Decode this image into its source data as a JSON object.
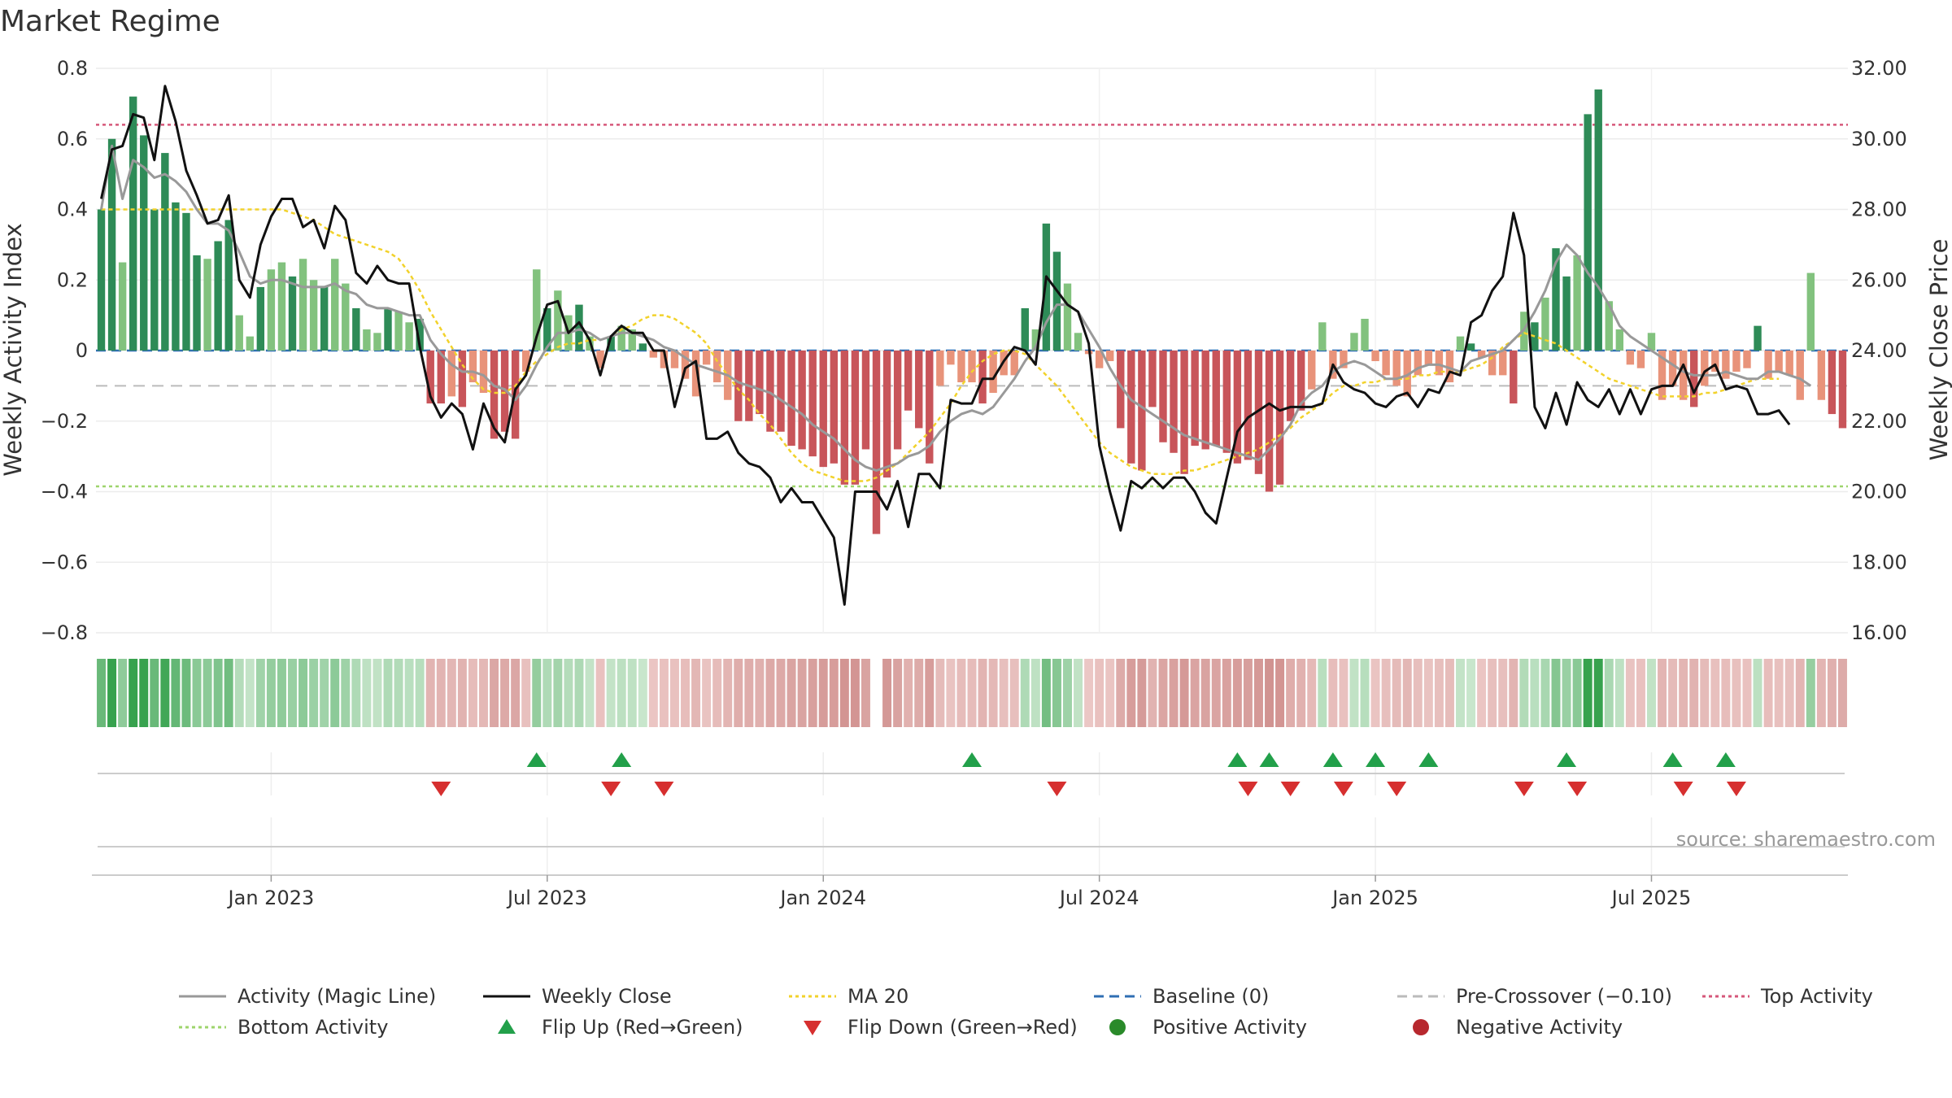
{
  "chart_data": {
    "type": "bar",
    "title": "Market Regime",
    "left_axis": {
      "label": "Weekly Activity Index",
      "ylim": [
        -0.8,
        0.8
      ],
      "ticks": [
        0.8,
        0.6,
        0.4,
        0.2,
        0,
        -0.2,
        -0.4,
        -0.6,
        -0.8
      ],
      "tick_labels": [
        "0.8",
        "0.6",
        "0.4",
        "0.2",
        "0",
        "−0.2",
        "−0.4",
        "−0.6",
        "−0.8"
      ]
    },
    "right_axis": {
      "label": "Weekly Close Price",
      "ylim": [
        16,
        32
      ],
      "ticks": [
        32,
        30,
        28,
        26,
        24,
        22,
        20,
        18,
        16
      ],
      "tick_labels": [
        "32.00",
        "30.00",
        "28.00",
        "26.00",
        "24.00",
        "22.00",
        "20.00",
        "18.00",
        "16.00"
      ]
    },
    "x_axis": {
      "ticks": [
        "Jan 2023",
        "Jul 2023",
        "Jan 2024",
        "Jul 2024",
        "Jan 2025",
        "Jul 2025"
      ]
    },
    "reference_lines": {
      "baseline": 0,
      "pre_crossover": -0.1,
      "top_activity": 0.64,
      "bottom_activity": -0.385
    },
    "activity": [
      0.4,
      0.6,
      0.25,
      0.72,
      0.61,
      0.4,
      0.56,
      0.42,
      0.39,
      0.27,
      0.26,
      0.31,
      0.37,
      0.1,
      0.04,
      0.18,
      0.23,
      0.25,
      0.21,
      0.26,
      0.2,
      0.18,
      0.26,
      0.19,
      0.12,
      0.06,
      0.05,
      0.12,
      0.11,
      0.08,
      0.09,
      -0.15,
      -0.15,
      -0.13,
      -0.16,
      -0.09,
      -0.12,
      -0.25,
      -0.23,
      -0.25,
      -0.06,
      0.23,
      0.12,
      0.17,
      0.1,
      0.13,
      0.04,
      -0.05,
      0.04,
      0.07,
      0.06,
      0.02,
      -0.02,
      -0.05,
      -0.05,
      -0.08,
      -0.13,
      -0.04,
      -0.09,
      -0.14,
      -0.2,
      -0.2,
      -0.18,
      -0.23,
      -0.23,
      -0.27,
      -0.28,
      -0.3,
      -0.33,
      -0.32,
      -0.38,
      -0.38,
      -0.28,
      -0.52,
      -0.36,
      -0.28,
      -0.17,
      -0.22,
      -0.32,
      -0.1,
      -0.04,
      -0.09,
      -0.09,
      -0.15,
      -0.12,
      -0.07,
      -0.07,
      0.12,
      0.06,
      0.36,
      0.28,
      0.19,
      0.05,
      -0.01,
      -0.05,
      -0.03,
      -0.22,
      -0.32,
      -0.34,
      -0.16,
      -0.26,
      -0.29,
      -0.35,
      -0.27,
      -0.28,
      -0.27,
      -0.29,
      -0.32,
      -0.31,
      -0.35,
      -0.4,
      -0.38,
      -0.2,
      -0.17,
      -0.11,
      0.08,
      -0.08,
      -0.05,
      0.05,
      0.09,
      -0.03,
      -0.07,
      -0.1,
      -0.13,
      -0.07,
      -0.04,
      -0.07,
      -0.09,
      0.04,
      0.02,
      -0.02,
      -0.07,
      -0.07,
      -0.15,
      0.11,
      0.08,
      0.15,
      0.29,
      0.21,
      0.27,
      0.67,
      0.74,
      0.14,
      0.06,
      -0.04,
      -0.05,
      0.05,
      -0.14,
      -0.1,
      -0.14,
      -0.16,
      -0.1,
      -0.06,
      -0.08,
      -0.06,
      -0.05,
      0.07,
      -0.08,
      -0.06,
      -0.07,
      -0.14,
      0.22,
      -0.14,
      -0.18,
      -0.22
    ],
    "weekly_close": [
      28.3,
      29.7,
      29.8,
      30.7,
      30.6,
      29.4,
      31.5,
      30.5,
      29.1,
      28.4,
      27.6,
      27.7,
      28.4,
      26.0,
      25.5,
      27.0,
      27.8,
      28.3,
      28.3,
      27.5,
      27.7,
      26.9,
      28.1,
      27.7,
      26.2,
      25.9,
      26.4,
      26.0,
      25.9,
      25.9,
      24.1,
      22.7,
      22.1,
      22.5,
      22.2,
      21.2,
      22.5,
      21.8,
      21.4,
      22.9,
      23.3,
      24.4,
      25.3,
      25.4,
      24.5,
      24.8,
      24.3,
      23.3,
      24.4,
      24.7,
      24.5,
      24.5,
      24.0,
      24.0,
      22.4,
      23.5,
      23.7,
      21.5,
      21.5,
      21.7,
      21.1,
      20.8,
      20.7,
      20.4,
      19.7,
      20.1,
      19.7,
      19.7,
      19.2,
      18.7,
      16.8,
      20.0,
      20.0,
      20.0,
      19.5,
      20.3,
      19.0,
      20.5,
      20.5,
      20.1,
      22.6,
      22.5,
      22.5,
      23.2,
      23.2,
      23.7,
      24.1,
      24.0,
      23.6,
      26.1,
      25.7,
      25.3,
      25.1,
      24.2,
      21.3,
      20.0,
      18.9,
      20.3,
      20.1,
      20.4,
      20.1,
      20.4,
      20.4,
      20.0,
      19.4,
      19.1,
      20.4,
      21.7,
      22.1,
      22.3,
      22.5,
      22.3,
      22.4,
      22.4,
      22.4,
      22.5,
      23.6,
      23.1,
      22.9,
      22.8,
      22.5,
      22.4,
      22.7,
      22.8,
      22.4,
      22.9,
      22.8,
      23.4,
      23.3,
      24.8,
      25.0,
      25.7,
      26.1,
      27.9,
      26.7,
      22.4,
      21.8,
      22.8,
      21.9,
      23.1,
      22.6,
      22.4,
      22.9,
      22.2,
      22.9,
      22.2,
      22.9,
      23.0,
      23.0,
      23.6,
      22.8,
      23.4,
      23.6,
      22.9,
      23.0,
      22.9,
      22.2,
      22.2,
      22.3,
      21.9
    ],
    "magic_line": [
      0.4,
      0.58,
      0.43,
      0.54,
      0.52,
      0.49,
      0.5,
      0.48,
      0.45,
      0.4,
      0.36,
      0.36,
      0.34,
      0.28,
      0.21,
      0.19,
      0.2,
      0.2,
      0.19,
      0.18,
      0.18,
      0.18,
      0.19,
      0.17,
      0.16,
      0.13,
      0.12,
      0.12,
      0.11,
      0.1,
      0.1,
      0.03,
      -0.01,
      -0.04,
      -0.06,
      -0.06,
      -0.07,
      -0.1,
      -0.11,
      -0.14,
      -0.1,
      -0.04,
      0.01,
      0.05,
      0.05,
      0.06,
      0.05,
      0.03,
      0.04,
      0.05,
      0.05,
      0.04,
      0.03,
      0.01,
      0.0,
      -0.02,
      -0.04,
      -0.05,
      -0.06,
      -0.07,
      -0.09,
      -0.1,
      -0.11,
      -0.12,
      -0.14,
      -0.16,
      -0.18,
      -0.21,
      -0.23,
      -0.25,
      -0.28,
      -0.31,
      -0.33,
      -0.34,
      -0.33,
      -0.32,
      -0.3,
      -0.29,
      -0.27,
      -0.23,
      -0.2,
      -0.18,
      -0.17,
      -0.18,
      -0.16,
      -0.12,
      -0.08,
      -0.03,
      0.01,
      0.08,
      0.13,
      0.13,
      0.11,
      0.06,
      0.01,
      -0.05,
      -0.1,
      -0.14,
      -0.16,
      -0.18,
      -0.2,
      -0.22,
      -0.24,
      -0.25,
      -0.26,
      -0.27,
      -0.28,
      -0.29,
      -0.3,
      -0.31,
      -0.28,
      -0.25,
      -0.21,
      -0.15,
      -0.12,
      -0.1,
      -0.06,
      -0.04,
      -0.03,
      -0.04,
      -0.06,
      -0.08,
      -0.08,
      -0.07,
      -0.05,
      -0.04,
      -0.04,
      -0.05,
      -0.06,
      -0.03,
      -0.02,
      -0.01,
      0.0,
      0.03,
      0.06,
      0.11,
      0.17,
      0.25,
      0.3,
      0.27,
      0.22,
      0.18,
      0.13,
      0.07,
      0.04,
      0.02,
      0.0,
      -0.02,
      -0.04,
      -0.06,
      -0.07,
      -0.07,
      -0.07,
      -0.06,
      -0.07,
      -0.08,
      -0.08,
      -0.06,
      -0.06,
      -0.07,
      -0.08,
      -0.1
    ],
    "ma20": [
      0.4,
      0.4,
      0.4,
      0.4,
      0.4,
      0.4,
      0.4,
      0.4,
      0.4,
      0.4,
      0.4,
      0.4,
      0.4,
      0.4,
      0.4,
      0.4,
      0.4,
      0.4,
      0.39,
      0.38,
      0.37,
      0.35,
      0.33,
      0.32,
      0.31,
      0.3,
      0.29,
      0.28,
      0.26,
      0.22,
      0.17,
      0.11,
      0.06,
      0.01,
      -0.04,
      -0.08,
      -0.11,
      -0.12,
      -0.12,
      -0.1,
      -0.06,
      -0.03,
      -0.01,
      0.01,
      0.02,
      0.02,
      0.03,
      0.03,
      0.04,
      0.06,
      0.07,
      0.09,
      0.1,
      0.1,
      0.09,
      0.07,
      0.05,
      0.02,
      -0.03,
      -0.07,
      -0.11,
      -0.14,
      -0.18,
      -0.21,
      -0.25,
      -0.29,
      -0.32,
      -0.34,
      -0.35,
      -0.36,
      -0.37,
      -0.37,
      -0.37,
      -0.36,
      -0.34,
      -0.32,
      -0.29,
      -0.26,
      -0.23,
      -0.19,
      -0.15,
      -0.1,
      -0.06,
      -0.03,
      -0.01,
      0.0,
      0.0,
      -0.01,
      -0.04,
      -0.07,
      -0.1,
      -0.14,
      -0.18,
      -0.22,
      -0.26,
      -0.29,
      -0.31,
      -0.33,
      -0.34,
      -0.35,
      -0.35,
      -0.35,
      -0.34,
      -0.34,
      -0.33,
      -0.32,
      -0.31,
      -0.3,
      -0.29,
      -0.28,
      -0.26,
      -0.24,
      -0.22,
      -0.19,
      -0.17,
      -0.15,
      -0.12,
      -0.1,
      -0.1,
      -0.09,
      -0.09,
      -0.08,
      -0.08,
      -0.08,
      -0.07,
      -0.07,
      -0.06,
      -0.06,
      -0.06,
      -0.05,
      -0.04,
      -0.02,
      0.01,
      0.03,
      0.05,
      0.04,
      0.03,
      0.02,
      0.0,
      -0.02,
      -0.04,
      -0.06,
      -0.08,
      -0.09,
      -0.1,
      -0.11,
      -0.12,
      -0.13,
      -0.13,
      -0.13,
      -0.13,
      -0.12,
      -0.12,
      -0.11,
      -0.1,
      -0.09,
      -0.08,
      -0.08,
      -0.08
    ],
    "regime_strip_gap_weeks": [
      73
    ],
    "flip_up_weeks": [
      41,
      49,
      82,
      107,
      110,
      116,
      120,
      125,
      138,
      148,
      153
    ],
    "flip_down_weeks": [
      32,
      48,
      53,
      90,
      108,
      112,
      117,
      122,
      134,
      139,
      149,
      154
    ],
    "source": "source: sharemaestro.com",
    "legend": [
      {
        "label": "Activity (Magic Line)",
        "kind": "line",
        "color": "#999999",
        "dash": ""
      },
      {
        "label": "Weekly Close",
        "kind": "line",
        "color": "#111111",
        "dash": ""
      },
      {
        "label": "MA 20",
        "kind": "line",
        "color": "#f2d22b",
        "dash": "4,4"
      },
      {
        "label": "Baseline (0)",
        "kind": "line",
        "color": "#2f6fb3",
        "dash": "12,7"
      },
      {
        "label": "Pre-Crossover (−0.10)",
        "kind": "line",
        "color": "#bbbbbb",
        "dash": "12,7"
      },
      {
        "label": "Top Activity",
        "kind": "line",
        "color": "#d6577a",
        "dash": "4,4"
      },
      {
        "label": "Bottom Activity",
        "kind": "line",
        "color": "#9ed46c",
        "dash": "4,4"
      },
      {
        "label": "Flip Up (Red→Green)",
        "kind": "tri-up",
        "color": "#22a04a",
        "dash": ""
      },
      {
        "label": "Flip Down (Green→Red)",
        "kind": "tri-down",
        "color": "#d62f2f",
        "dash": ""
      },
      {
        "label": "Positive Activity",
        "kind": "dot",
        "color": "#2a8a2a",
        "dash": ""
      },
      {
        "label": "Negative Activity",
        "kind": "dot",
        "color": "#b7282e",
        "dash": ""
      }
    ],
    "colors": {
      "positive_strong": "#2e8b57",
      "positive_weak": "#82c27e",
      "negative_strong": "#c8555a",
      "negative_weak": "#e8937a",
      "flip_up": "#22a04a",
      "flip_down": "#d62f2f"
    }
  }
}
